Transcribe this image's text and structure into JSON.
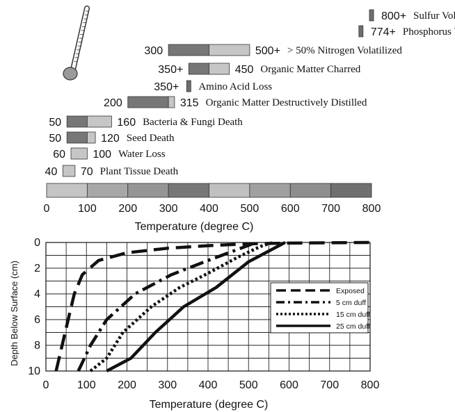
{
  "chart_data": [
    {
      "type": "bar",
      "subtype": "range-bar",
      "xlabel": "Temperature (degree C)",
      "xlim": [
        0,
        800
      ],
      "xticks": [
        0,
        100,
        200,
        300,
        400,
        500,
        600,
        700,
        800
      ],
      "bars": [
        {
          "label": "Sulfur Volatilized",
          "start": 800,
          "end": 800,
          "start_label": "",
          "end_label": "800+",
          "split": null
        },
        {
          "label": "Phosphorus Volatilized",
          "start": 774,
          "end": 774,
          "start_label": "",
          "end_label": "774+",
          "split": null
        },
        {
          "label": "> 50% Nitrogen Volatilized",
          "start": 300,
          "end": 500,
          "start_label": "300",
          "end_label": "500+",
          "split": 400
        },
        {
          "label": "Organic Matter Charred",
          "start": 350,
          "end": 450,
          "start_label": "350+",
          "end_label": "450",
          "split": 400
        },
        {
          "label": "Amino Acid Loss",
          "start": 350,
          "end": 350,
          "start_label": "350+",
          "end_label": "",
          "split": null
        },
        {
          "label": "Organic Matter Destructively Distilled",
          "start": 200,
          "end": 315,
          "start_label": "200",
          "end_label": "315",
          "split": 300
        },
        {
          "label": "Bacteria & Fungi Death",
          "start": 50,
          "end": 160,
          "start_label": "50",
          "end_label": "160",
          "split": 100
        },
        {
          "label": "Seed Death",
          "start": 50,
          "end": 120,
          "start_label": "50",
          "end_label": "120",
          "split": 100
        },
        {
          "label": "Water Loss",
          "start": 60,
          "end": 100,
          "start_label": "60",
          "end_label": "100",
          "split": null
        },
        {
          "label": "Plant Tissue Death",
          "start": 40,
          "end": 70,
          "start_label": "40",
          "end_label": "70",
          "split": null
        }
      ],
      "scale_bands": [
        "#c4c4c4",
        "#a7a7a7",
        "#959595",
        "#777777",
        "#c0c0c0",
        "#a0a0a0",
        "#8e8e8e",
        "#707070"
      ]
    },
    {
      "type": "line",
      "xlabel": "Temperature (degree C)",
      "ylabel": "Depth Below Surface (cm)",
      "xlim": [
        0,
        800
      ],
      "ylim": [
        0,
        10
      ],
      "y_inverted": true,
      "xticks": [
        0,
        100,
        200,
        300,
        400,
        500,
        600,
        700,
        800
      ],
      "yticks": [
        0,
        2,
        4,
        6,
        8,
        10
      ],
      "grid": true,
      "legend_position": "right",
      "series": [
        {
          "name": "Exposed",
          "style": "dashed",
          "points": [
            [
              25,
              10
            ],
            [
              40,
              8
            ],
            [
              55,
              6
            ],
            [
              70,
              4
            ],
            [
              90,
              2.5
            ],
            [
              130,
              1.4
            ],
            [
              200,
              0.8
            ],
            [
              300,
              0.45
            ],
            [
              400,
              0.25
            ],
            [
              500,
              0.1
            ],
            [
              600,
              0.05
            ],
            [
              700,
              0.02
            ],
            [
              800,
              0
            ]
          ]
        },
        {
          "name": "5 cm duff",
          "style": "dashdot",
          "points": [
            [
              80,
              10
            ],
            [
              110,
              8
            ],
            [
              150,
              6
            ],
            [
              220,
              4
            ],
            [
              310,
              2.5
            ],
            [
              400,
              1.4
            ],
            [
              460,
              0.7
            ],
            [
              510,
              0.1
            ]
          ]
        },
        {
          "name": "15 cm duff",
          "style": "dotted",
          "points": [
            [
              110,
              10
            ],
            [
              150,
              9
            ],
            [
              190,
              7
            ],
            [
              260,
              5
            ],
            [
              330,
              3.5
            ],
            [
              400,
              2.4
            ],
            [
              470,
              1.2
            ],
            [
              530,
              0.3
            ],
            [
              560,
              0
            ]
          ]
        },
        {
          "name": "25 cm duff",
          "style": "solid",
          "points": [
            [
              150,
              10
            ],
            [
              210,
              9
            ],
            [
              270,
              7
            ],
            [
              340,
              5
            ],
            [
              420,
              3.5
            ],
            [
              500,
              1.5
            ],
            [
              590,
              0
            ]
          ]
        }
      ]
    }
  ]
}
